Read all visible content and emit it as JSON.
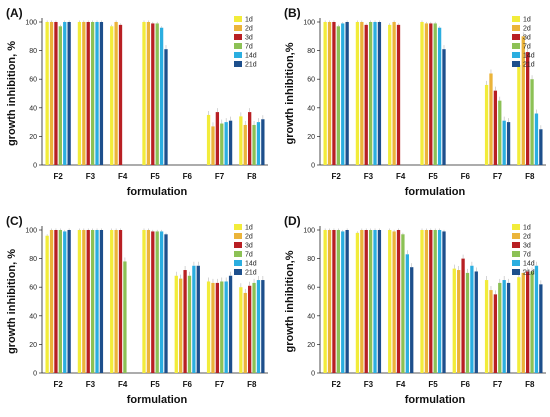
{
  "colors": {
    "1d": "#f2ec3a",
    "2d": "#ebb43a",
    "3d": "#b81f23",
    "7d": "#8cc155",
    "14d": "#2baee0",
    "21d": "#1d4f8c"
  },
  "chart_data": [
    {
      "type": "bar",
      "panel_label": "(A)",
      "xlabel": "formulation",
      "ylabel": "growth inhibition, %",
      "ylim": [
        0,
        100
      ],
      "yticks": [
        0,
        20,
        40,
        60,
        80,
        100
      ],
      "categories": [
        "F2",
        "F3",
        "F4",
        "F5",
        "F6",
        "F7",
        "F8"
      ],
      "legend": [
        "1d",
        "2d",
        "3d",
        "7d",
        "14d",
        "21d"
      ],
      "series": [
        {
          "name": "1d",
          "values": [
            100,
            100,
            97,
            100,
            0,
            35,
            34
          ]
        },
        {
          "name": "2d",
          "values": [
            100,
            100,
            100,
            100,
            0,
            27,
            28
          ]
        },
        {
          "name": "3d",
          "values": [
            100,
            100,
            98,
            99,
            0,
            37,
            37
          ]
        },
        {
          "name": "7d",
          "values": [
            97,
            100,
            0,
            99,
            0,
            29,
            28
          ]
        },
        {
          "name": "14d",
          "values": [
            100,
            100,
            0,
            96,
            0,
            30,
            30
          ]
        },
        {
          "name": "21d",
          "values": [
            100,
            100,
            0,
            81,
            0,
            31,
            32
          ]
        }
      ]
    },
    {
      "type": "bar",
      "panel_label": "(B)",
      "xlabel": "formulation",
      "ylabel": "growth inhibition,%",
      "ylim": [
        0,
        100
      ],
      "yticks": [
        0,
        20,
        40,
        60,
        80,
        100
      ],
      "categories": [
        "F2",
        "F3",
        "F4",
        "F5",
        "F6",
        "F7",
        "F8"
      ],
      "legend": [
        "1d",
        "2d",
        "3d",
        "7d",
        "14d",
        "21d"
      ],
      "series": [
        {
          "name": "1d",
          "values": [
            100,
            100,
            98,
            100,
            0,
            56,
            70
          ]
        },
        {
          "name": "2d",
          "values": [
            100,
            100,
            100,
            99,
            0,
            64,
            90
          ]
        },
        {
          "name": "3d",
          "values": [
            100,
            98,
            98,
            99,
            0,
            52,
            79
          ]
        },
        {
          "name": "7d",
          "values": [
            97,
            100,
            0,
            99,
            0,
            45,
            60
          ]
        },
        {
          "name": "14d",
          "values": [
            99,
            100,
            0,
            96,
            0,
            31,
            36
          ]
        },
        {
          "name": "21d",
          "values": [
            100,
            100,
            0,
            81,
            0,
            30,
            25
          ]
        }
      ]
    },
    {
      "type": "bar",
      "panel_label": "(C)",
      "xlabel": "formulation",
      "ylabel": "growth inhibition, %",
      "ylim": [
        0,
        100
      ],
      "yticks": [
        0,
        20,
        40,
        60,
        80,
        100
      ],
      "categories": [
        "F2",
        "F3",
        "F4",
        "F5",
        "F6",
        "F7",
        "F8"
      ],
      "legend": [
        "1d",
        "2d",
        "3d",
        "7d",
        "14d",
        "21d"
      ],
      "series": [
        {
          "name": "1d",
          "values": [
            96,
            100,
            100,
            100,
            68,
            64,
            60
          ]
        },
        {
          "name": "2d",
          "values": [
            100,
            100,
            100,
            100,
            66,
            63,
            56
          ]
        },
        {
          "name": "3d",
          "values": [
            100,
            100,
            100,
            99,
            72,
            63,
            61
          ]
        },
        {
          "name": "7d",
          "values": [
            100,
            100,
            78,
            99,
            68,
            64,
            63
          ]
        },
        {
          "name": "14d",
          "values": [
            99,
            100,
            0,
            99,
            75,
            64,
            65
          ]
        },
        {
          "name": "21d",
          "values": [
            100,
            100,
            0,
            97,
            75,
            68,
            65
          ]
        }
      ]
    },
    {
      "type": "bar",
      "panel_label": "(D)",
      "xlabel": "formulation",
      "ylabel": "growth inhibition,%",
      "ylim": [
        0,
        100
      ],
      "yticks": [
        0,
        20,
        40,
        60,
        80,
        100
      ],
      "categories": [
        "F2",
        "F3",
        "F4",
        "F5",
        "F6",
        "F7",
        "F8"
      ],
      "legend": [
        "1d",
        "2d",
        "3d",
        "7d",
        "14d",
        "21d"
      ],
      "series": [
        {
          "name": "1d",
          "values": [
            100,
            98,
            100,
            100,
            73,
            65,
            67
          ]
        },
        {
          "name": "2d",
          "values": [
            100,
            100,
            99,
            100,
            72,
            58,
            70
          ]
        },
        {
          "name": "3d",
          "values": [
            100,
            100,
            100,
            100,
            80,
            55,
            71
          ]
        },
        {
          "name": "7d",
          "values": [
            100,
            100,
            97,
            100,
            70,
            63,
            71
          ]
        },
        {
          "name": "14d",
          "values": [
            99,
            100,
            83,
            100,
            75,
            65,
            75
          ]
        },
        {
          "name": "21d",
          "values": [
            100,
            100,
            74,
            99,
            71,
            63,
            62
          ]
        }
      ]
    }
  ]
}
